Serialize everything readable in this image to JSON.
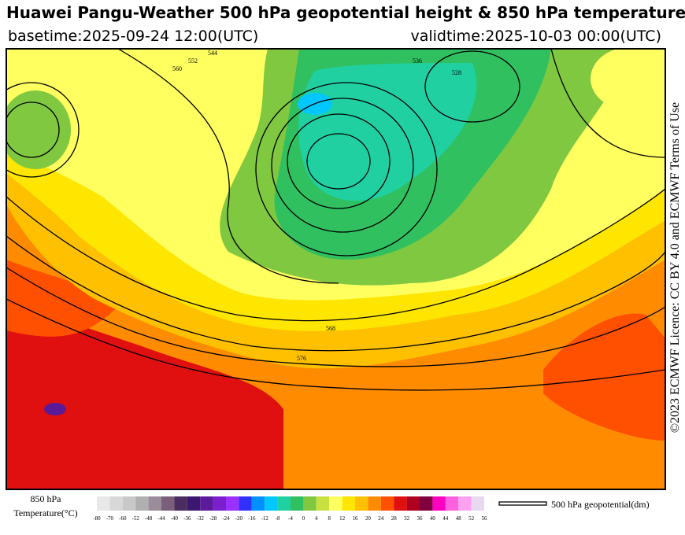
{
  "header": {
    "title": "Huawei Pangu-Weather 500 hPa geopotential height & 850 hPa temperature",
    "basetime": "basetime:2025-09-24 12:00(UTC)",
    "validtime": "validtime:2025-10-03 00:00(UTC)"
  },
  "licence": "©2023 ECMWF Licence: CC BY 4.0 and ECMWF Terms of Use",
  "contour_labels": [
    "552",
    "560",
    "544",
    "536",
    "528",
    "568",
    "576"
  ],
  "colorbar": {
    "title_lines": [
      "850 hPa",
      "Temperature(°C)"
    ],
    "ticks": [
      -80,
      -70,
      -60,
      -52,
      -48,
      -44,
      -40,
      -36,
      -32,
      -28,
      -24,
      -20,
      -16,
      -12,
      -8,
      -4,
      0,
      4,
      8,
      12,
      16,
      20,
      24,
      28,
      32,
      36,
      40,
      44,
      48,
      52,
      56
    ],
    "colors": [
      "#e8e8e8",
      "#d8d8d8",
      "#c8c8c8",
      "#b0b0b0",
      "#9a8c9a",
      "#7a5f7a",
      "#4b2c5e",
      "#3a1870",
      "#5a1a9a",
      "#7a1ecf",
      "#9b30ff",
      "#3030ff",
      "#0090ff",
      "#00c8ff",
      "#20d0a0",
      "#30c060",
      "#80c840",
      "#c8e040",
      "#ffff60",
      "#ffe600",
      "#ffc000",
      "#ff8c00",
      "#ff5000",
      "#e01010",
      "#b00020",
      "#800040",
      "#ff00c0",
      "#ff60e0",
      "#ffa0f0",
      "#e8d8f0"
    ]
  },
  "contour_legend": "500 hPa geopotential(dm)"
}
